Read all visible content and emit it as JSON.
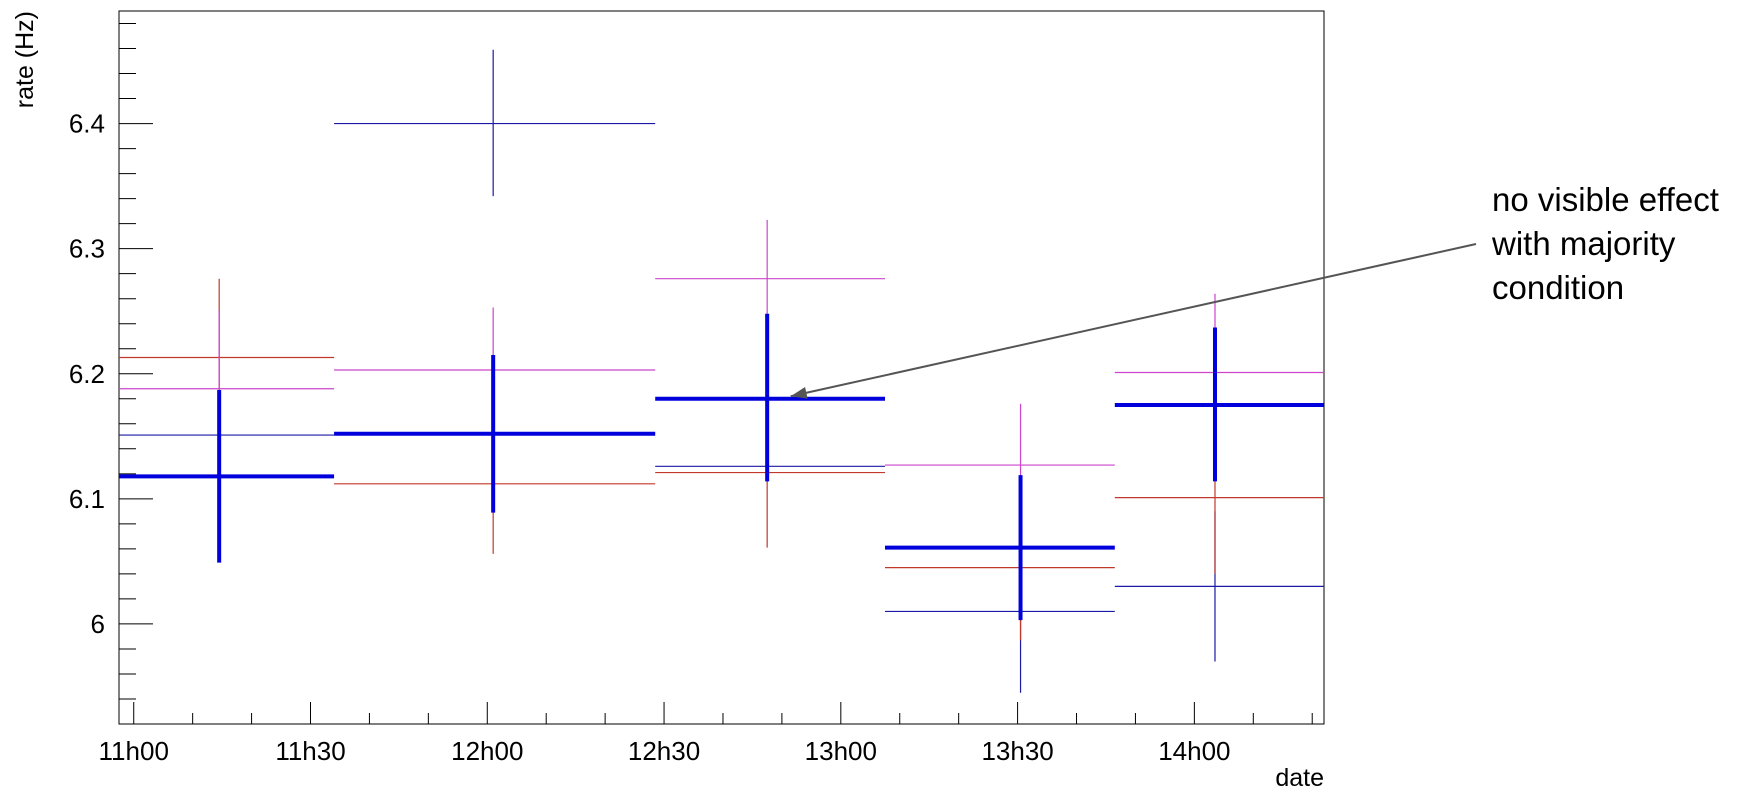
{
  "chart_data": {
    "type": "scatter",
    "xlabel": "date",
    "ylabel": "rate (Hz)",
    "x_axis": {
      "min_minutes": -2.5,
      "max_minutes": 202,
      "major_ticks": [
        {
          "label": "11h00",
          "minutes": 0
        },
        {
          "label": "11h30",
          "minutes": 30
        },
        {
          "label": "12h00",
          "minutes": 60
        },
        {
          "label": "12h30",
          "minutes": 90
        },
        {
          "label": "13h00",
          "minutes": 120
        },
        {
          "label": "13h30",
          "minutes": 150
        },
        {
          "label": "14h00",
          "minutes": 180
        }
      ]
    },
    "y_axis": {
      "min": 5.92,
      "max": 6.49,
      "major_ticks": [
        {
          "label": "6",
          "value": 6.0
        },
        {
          "label": "6.1",
          "value": 6.1
        },
        {
          "label": "6.2",
          "value": 6.2
        },
        {
          "label": "6.3",
          "value": 6.3
        },
        {
          "label": "6.4",
          "value": 6.4
        }
      ]
    },
    "series": [
      {
        "color": "#1a1aa6",
        "points": [
          {
            "x": 14.5,
            "xlo": -2.5,
            "xhi": 34.0,
            "y": 6.151,
            "ylo": 6.151,
            "yhi": 6.151
          },
          {
            "x": 61.0,
            "xlo": 34.0,
            "xhi": 88.5,
            "y": 6.4,
            "ylo": 6.342,
            "yhi": 6.459
          },
          {
            "x": 107.5,
            "xlo": 88.5,
            "xhi": 127.5,
            "y": 6.126,
            "ylo": 6.126,
            "yhi": 6.126
          },
          {
            "x": 150.5,
            "xlo": 127.5,
            "xhi": 166.5,
            "y": 6.01,
            "ylo": 5.945,
            "yhi": 6.075
          },
          {
            "x": 183.5,
            "xlo": 166.5,
            "xhi": 202.0,
            "y": 6.03,
            "ylo": 5.97,
            "yhi": 6.09
          }
        ]
      },
      {
        "color": "#c0392b",
        "points": [
          {
            "x": 14.5,
            "xlo": -2.5,
            "xhi": 34.0,
            "y": 6.213,
            "ylo": 6.15,
            "yhi": 6.276
          },
          {
            "x": 61.0,
            "xlo": 34.0,
            "xhi": 88.5,
            "y": 6.112,
            "ylo": 6.056,
            "yhi": 6.168
          },
          {
            "x": 107.5,
            "xlo": 88.5,
            "xhi": 127.5,
            "y": 6.121,
            "ylo": 6.061,
            "yhi": 6.181
          },
          {
            "x": 150.5,
            "xlo": 127.5,
            "xhi": 166.5,
            "y": 6.045,
            "ylo": 5.987,
            "yhi": 6.103
          },
          {
            "x": 183.5,
            "xlo": 166.5,
            "xhi": 202.0,
            "y": 6.101,
            "ylo": 6.04,
            "yhi": 6.162
          }
        ]
      },
      {
        "color": "#cc44cc",
        "points": [
          {
            "x": 14.5,
            "xlo": -2.5,
            "xhi": 34.0,
            "y": 6.188,
            "ylo": 6.125,
            "yhi": 6.251
          },
          {
            "x": 61.0,
            "xlo": 34.0,
            "xhi": 88.5,
            "y": 6.203,
            "ylo": 6.153,
            "yhi": 6.253
          },
          {
            "x": 107.5,
            "xlo": 88.5,
            "xhi": 127.5,
            "y": 6.276,
            "ylo": 6.23,
            "yhi": 6.323
          },
          {
            "x": 150.5,
            "xlo": 127.5,
            "xhi": 166.5,
            "y": 6.127,
            "ylo": 6.078,
            "yhi": 6.176
          },
          {
            "x": 183.5,
            "xlo": 166.5,
            "xhi": 202.0,
            "y": 6.201,
            "ylo": 6.138,
            "yhi": 6.264
          }
        ]
      },
      {
        "color": "#0000dd",
        "bold": true,
        "points": [
          {
            "x": 14.5,
            "xlo": -2.5,
            "xhi": 34.0,
            "y": 6.118,
            "ylo": 6.049,
            "yhi": 6.187
          },
          {
            "x": 61.0,
            "xlo": 34.0,
            "xhi": 88.5,
            "y": 6.152,
            "ylo": 6.089,
            "yhi": 6.215
          },
          {
            "x": 107.5,
            "xlo": 88.5,
            "xhi": 127.5,
            "y": 6.18,
            "ylo": 6.114,
            "yhi": 6.248
          },
          {
            "x": 150.5,
            "xlo": 127.5,
            "xhi": 166.5,
            "y": 6.061,
            "ylo": 6.003,
            "yhi": 6.119
          },
          {
            "x": 183.5,
            "xlo": 166.5,
            "xhi": 202.0,
            "y": 6.175,
            "ylo": 6.114,
            "yhi": 6.237
          }
        ]
      }
    ],
    "annotation": {
      "lines": [
        "no visible effect",
        "with majority",
        "condition"
      ],
      "target_x_minutes": 111.5,
      "target_y": 6.182,
      "arrow_color": "#555555"
    }
  }
}
